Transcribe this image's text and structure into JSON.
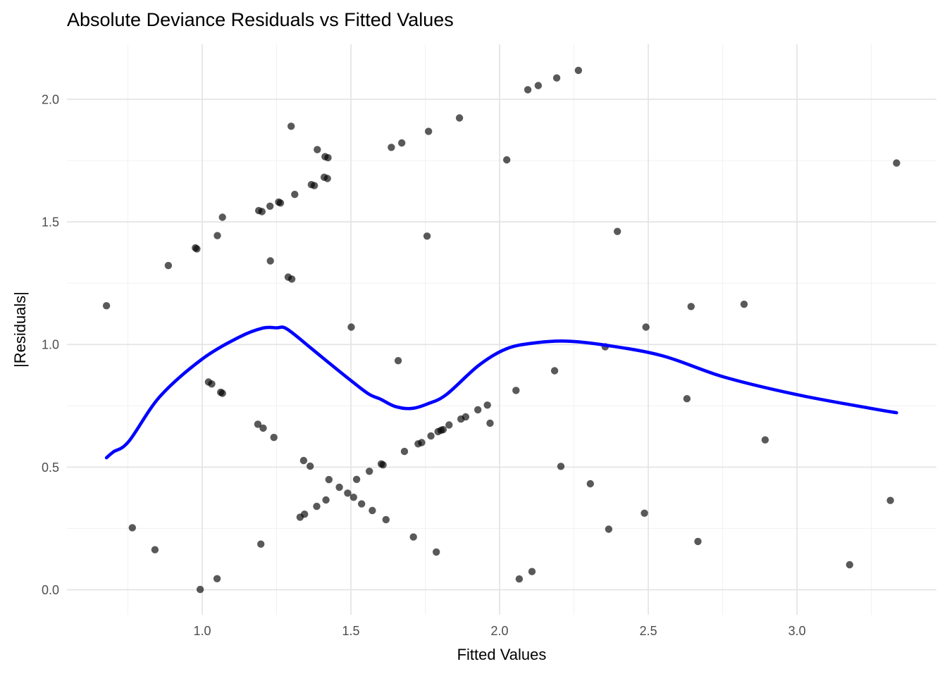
{
  "title": "Absolute Deviance Residuals vs Fitted Values",
  "colors": {
    "smooth_line": "#0000FF",
    "point_fill": "#000000",
    "point_alpha": 0.65,
    "grid_major": "#E4E4E4",
    "grid_minor": "#F1F1F1",
    "tick_label": "#4D4D4D",
    "background": "#FFFFFF"
  },
  "chart_data": {
    "type": "scatter",
    "title": "Absolute Deviance Residuals vs Fitted Values",
    "xlabel": "Fitted Values",
    "ylabel": "|Residuals|",
    "xlim": [
      0.545,
      3.469
    ],
    "ylim": [
      -0.102,
      2.224
    ],
    "grid": true,
    "legend": false,
    "x_ticks": {
      "values": [
        1.0,
        1.5,
        2.0,
        2.5,
        3.0
      ],
      "labels": [
        "1.0",
        "1.5",
        "2.0",
        "2.5",
        "3.0"
      ]
    },
    "y_ticks": {
      "values": [
        0.0,
        0.5,
        1.0,
        1.5,
        2.0
      ],
      "labels": [
        "0.0",
        "0.5",
        "1.0",
        "1.5",
        "2.0"
      ]
    },
    "x_minor": [
      0.75,
      1.25,
      1.75,
      2.25,
      2.75,
      3.25
    ],
    "y_minor": [
      0.25,
      0.75,
      1.25,
      1.75
    ],
    "points": [
      [
        1.299,
        1.89
      ],
      [
        1.387,
        1.795
      ],
      [
        1.413,
        1.766
      ],
      [
        1.423,
        1.762
      ],
      [
        1.41,
        1.682
      ],
      [
        1.421,
        1.677
      ],
      [
        1.367,
        1.652
      ],
      [
        1.377,
        1.648
      ],
      [
        1.311,
        1.612
      ],
      [
        1.257,
        1.581
      ],
      [
        1.263,
        1.577
      ],
      [
        1.228,
        1.564
      ],
      [
        1.19,
        1.546
      ],
      [
        1.201,
        1.542
      ],
      [
        1.068,
        1.519
      ],
      [
        1.051,
        1.444
      ],
      [
        0.977,
        1.394
      ],
      [
        0.982,
        1.39
      ],
      [
        0.886,
        1.322
      ],
      [
        1.229,
        1.341
      ],
      [
        1.289,
        1.275
      ],
      [
        1.301,
        1.267
      ],
      [
        0.678,
        1.158
      ],
      [
        2.265,
        2.118
      ],
      [
        2.192,
        2.087
      ],
      [
        2.13,
        2.056
      ],
      [
        2.095,
        2.039
      ],
      [
        1.865,
        1.924
      ],
      [
        1.761,
        1.869
      ],
      [
        1.671,
        1.822
      ],
      [
        1.636,
        1.804
      ],
      [
        2.024,
        1.753
      ],
      [
        1.756,
        1.442
      ],
      [
        2.396,
        1.461
      ],
      [
        3.335,
        1.74
      ],
      [
        2.644,
        1.155
      ],
      [
        2.822,
        1.164
      ],
      [
        1.501,
        1.071
      ],
      [
        1.021,
        0.847
      ],
      [
        1.032,
        0.839
      ],
      [
        1.062,
        0.805
      ],
      [
        1.068,
        0.801
      ],
      [
        1.187,
        0.675
      ],
      [
        1.205,
        0.659
      ],
      [
        1.241,
        0.621
      ],
      [
        1.341,
        0.527
      ],
      [
        1.363,
        0.504
      ],
      [
        1.426,
        0.449
      ],
      [
        1.461,
        0.418
      ],
      [
        1.489,
        0.394
      ],
      [
        1.509,
        0.377
      ],
      [
        1.536,
        0.35
      ],
      [
        1.572,
        0.323
      ],
      [
        1.618,
        0.286
      ],
      [
        1.329,
        0.296
      ],
      [
        1.344,
        0.308
      ],
      [
        1.385,
        0.34
      ],
      [
        1.416,
        0.366
      ],
      [
        1.519,
        0.45
      ],
      [
        1.562,
        0.483
      ],
      [
        1.602,
        0.513
      ],
      [
        1.608,
        0.509
      ],
      [
        1.68,
        0.564
      ],
      [
        1.726,
        0.595
      ],
      [
        1.738,
        0.6
      ],
      [
        1.769,
        0.627
      ],
      [
        1.793,
        0.645
      ],
      [
        1.803,
        0.65
      ],
      [
        1.81,
        0.653
      ],
      [
        1.83,
        0.672
      ],
      [
        1.87,
        0.696
      ],
      [
        1.886,
        0.705
      ],
      [
        1.927,
        0.734
      ],
      [
        1.959,
        0.753
      ],
      [
        1.968,
        0.679
      ],
      [
        1.659,
        0.934
      ],
      [
        2.185,
        0.893
      ],
      [
        2.055,
        0.813
      ],
      [
        2.355,
        0.991
      ],
      [
        2.492,
        1.071
      ],
      [
        2.206,
        0.503
      ],
      [
        2.305,
        0.432
      ],
      [
        2.367,
        0.247
      ],
      [
        2.487,
        0.312
      ],
      [
        1.71,
        0.215
      ],
      [
        1.787,
        0.154
      ],
      [
        2.066,
        0.044
      ],
      [
        2.109,
        0.074
      ],
      [
        0.765,
        0.253
      ],
      [
        0.841,
        0.163
      ],
      [
        1.197,
        0.186
      ],
      [
        0.993,
        0.001
      ],
      [
        1.05,
        0.045
      ],
      [
        2.63,
        0.779
      ],
      [
        2.893,
        0.611
      ],
      [
        3.314,
        0.364
      ],
      [
        2.667,
        0.197
      ],
      [
        3.177,
        0.102
      ]
    ],
    "smooth_line": {
      "name": "loess-fit",
      "color": "#0000FF",
      "points": [
        [
          0.678,
          0.538
        ],
        [
          0.701,
          0.562
        ],
        [
          0.753,
          0.605
        ],
        [
          0.857,
          0.787
        ],
        [
          0.999,
          0.94
        ],
        [
          1.126,
          1.031
        ],
        [
          1.204,
          1.067
        ],
        [
          1.25,
          1.068
        ],
        [
          1.284,
          1.064
        ],
        [
          1.363,
          0.988
        ],
        [
          1.402,
          0.949
        ],
        [
          1.499,
          0.854
        ],
        [
          1.56,
          0.798
        ],
        [
          1.6,
          0.777
        ],
        [
          1.647,
          0.748
        ],
        [
          1.702,
          0.739
        ],
        [
          1.758,
          0.758
        ],
        [
          1.821,
          0.796
        ],
        [
          1.931,
          0.916
        ],
        [
          2.024,
          0.983
        ],
        [
          2.121,
          1.007
        ],
        [
          2.224,
          1.014
        ],
        [
          2.358,
          0.997
        ],
        [
          2.548,
          0.954
        ],
        [
          2.753,
          0.868
        ],
        [
          2.998,
          0.796
        ],
        [
          3.251,
          0.739
        ],
        [
          3.335,
          0.722
        ]
      ]
    }
  }
}
